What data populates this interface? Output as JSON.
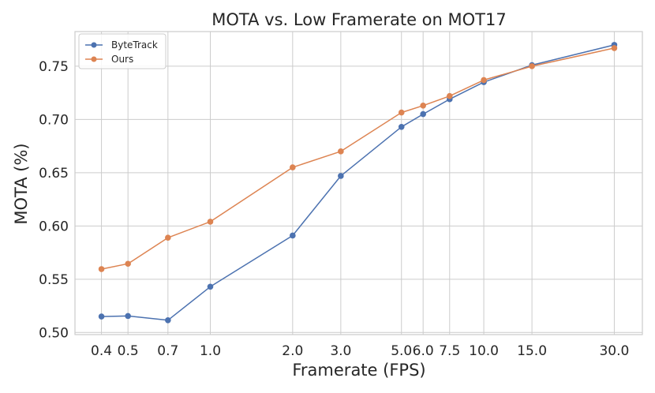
{
  "chart_data": {
    "type": "line",
    "title": "MOTA vs. Low Framerate on MOT17",
    "xlabel": "Framerate (FPS)",
    "ylabel": "MOTA (%)",
    "x": [
      0.4,
      0.5,
      0.7,
      1.0,
      2.0,
      3.0,
      5.0,
      6.0,
      7.5,
      10.0,
      15.0,
      30.0
    ],
    "x_tick_labels": [
      "0.4",
      "0.5",
      "0.7",
      "1.0",
      "2.0",
      "3.0",
      "5.0",
      "6.0",
      "7.5",
      "10.0",
      "15.0",
      "30.0"
    ],
    "x_scale": "log",
    "xlim": [
      0.32,
      38
    ],
    "y_ticks": [
      0.5,
      0.55,
      0.6,
      0.65,
      0.7,
      0.75
    ],
    "y_tick_labels": [
      "0.50",
      "0.55",
      "0.60",
      "0.65",
      "0.70",
      "0.75"
    ],
    "ylim": [
      0.498,
      0.7825
    ],
    "grid": true,
    "legend_position": "top-left",
    "series": [
      {
        "name": "ByteTrack",
        "color": "#4c72b0",
        "values": [
          0.515,
          0.5155,
          0.5115,
          0.543,
          0.591,
          0.647,
          0.693,
          0.705,
          0.719,
          0.735,
          0.751,
          0.77
        ]
      },
      {
        "name": "Ours",
        "color": "#dd8452",
        "values": [
          0.5595,
          0.5645,
          0.589,
          0.604,
          0.655,
          0.67,
          0.7065,
          0.713,
          0.722,
          0.737,
          0.75,
          0.767
        ]
      }
    ]
  }
}
